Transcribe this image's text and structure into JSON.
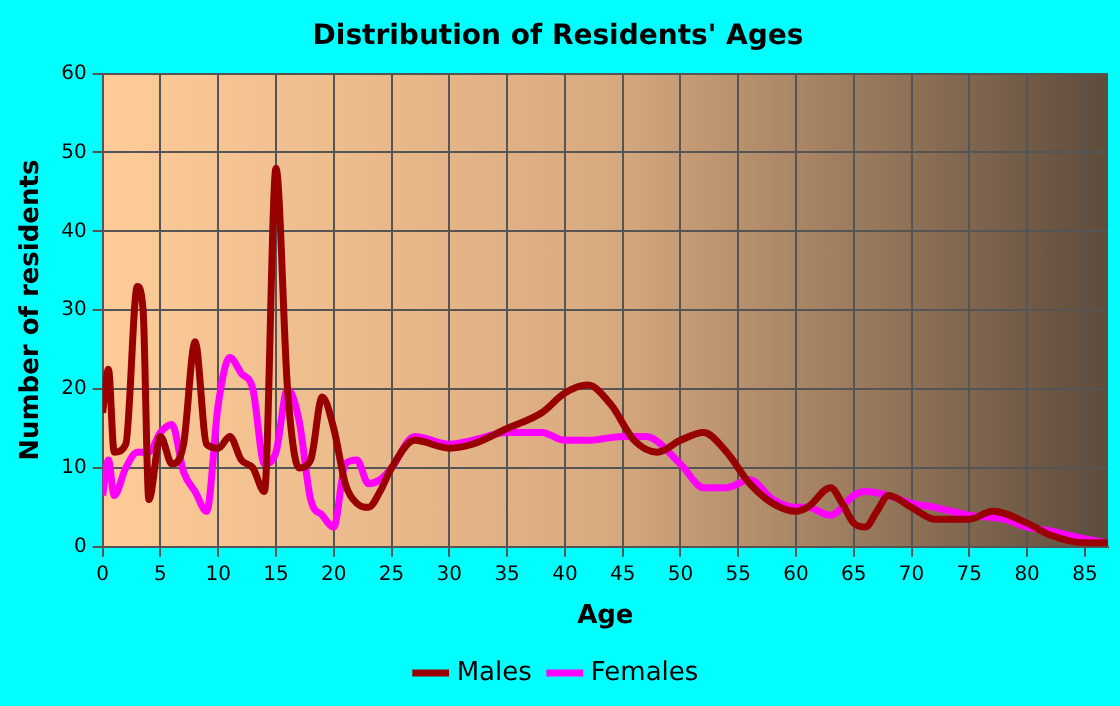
{
  "chart_data": {
    "type": "line",
    "title": "Distribution of Residents' Ages",
    "xlabel": "Age",
    "ylabel": "Number of residents",
    "xlim": [
      0,
      87
    ],
    "xticks": [
      0,
      5,
      10,
      15,
      20,
      25,
      30,
      35,
      40,
      45,
      50,
      55,
      60,
      65,
      70,
      75,
      80,
      85
    ],
    "ylim": [
      0,
      60
    ],
    "yticks": [
      0,
      10,
      20,
      30,
      40,
      50,
      60
    ],
    "grid": true,
    "legend": "bottom",
    "marker": "none",
    "line_style": "solid",
    "series": [
      {
        "name": "Males",
        "color": "#990000",
        "x": [
          0,
          0.5,
          1,
          2,
          3,
          3.5,
          4,
          5,
          6,
          7,
          8,
          9,
          10,
          11,
          12,
          13,
          14,
          15,
          16,
          17,
          18,
          19,
          20,
          21,
          22,
          23,
          24,
          25,
          27,
          30,
          32,
          35,
          38,
          40,
          42,
          44,
          46,
          48,
          50,
          52,
          54,
          56,
          58,
          60,
          61,
          63,
          64,
          65,
          66,
          67,
          68,
          70,
          72,
          75,
          77,
          80,
          82,
          85,
          87
        ],
        "values": [
          17,
          22.5,
          12,
          13,
          33,
          30,
          6,
          14,
          10.5,
          13,
          26,
          13,
          12.5,
          14,
          11,
          10,
          7,
          48,
          20,
          10,
          11,
          19,
          15,
          8,
          5.5,
          5,
          7,
          10,
          13.5,
          12.5,
          13,
          15,
          17,
          19.5,
          20.5,
          18,
          13.5,
          12,
          13.5,
          14.5,
          12,
          8,
          5.5,
          4.5,
          5,
          7.5,
          5.5,
          3,
          2.5,
          4.5,
          6.5,
          5,
          3.5,
          3.5,
          4.5,
          3,
          1.5,
          0.5,
          0.5
        ]
      },
      {
        "name": "Females",
        "color": "#ff00ff",
        "x": [
          0,
          0.5,
          1,
          2,
          3,
          4,
          5,
          6,
          7,
          8,
          9,
          10,
          11,
          12,
          13,
          14,
          15,
          16,
          17,
          18,
          19,
          20,
          21,
          22,
          23,
          24,
          25,
          27,
          30,
          32,
          35,
          38,
          40,
          42,
          45,
          47,
          50,
          52,
          54,
          56,
          58,
          60,
          61,
          63,
          65,
          66,
          68,
          70,
          72,
          75,
          78,
          80,
          82,
          85,
          87
        ],
        "values": [
          6.5,
          11,
          6.5,
          10,
          12,
          12,
          14.5,
          15.5,
          9.5,
          7,
          4.5,
          18,
          24,
          22,
          20,
          10.5,
          12,
          20,
          16,
          6,
          4,
          2.5,
          10.5,
          11,
          8,
          8.5,
          10,
          14,
          13,
          13.5,
          14.5,
          14.5,
          13.5,
          13.5,
          14,
          14,
          10.5,
          7.5,
          7.5,
          8.5,
          6,
          5,
          5,
          4,
          6.5,
          7,
          6.5,
          5.5,
          5,
          4,
          3.5,
          2.5,
          2,
          1,
          0.5
        ]
      }
    ]
  }
}
